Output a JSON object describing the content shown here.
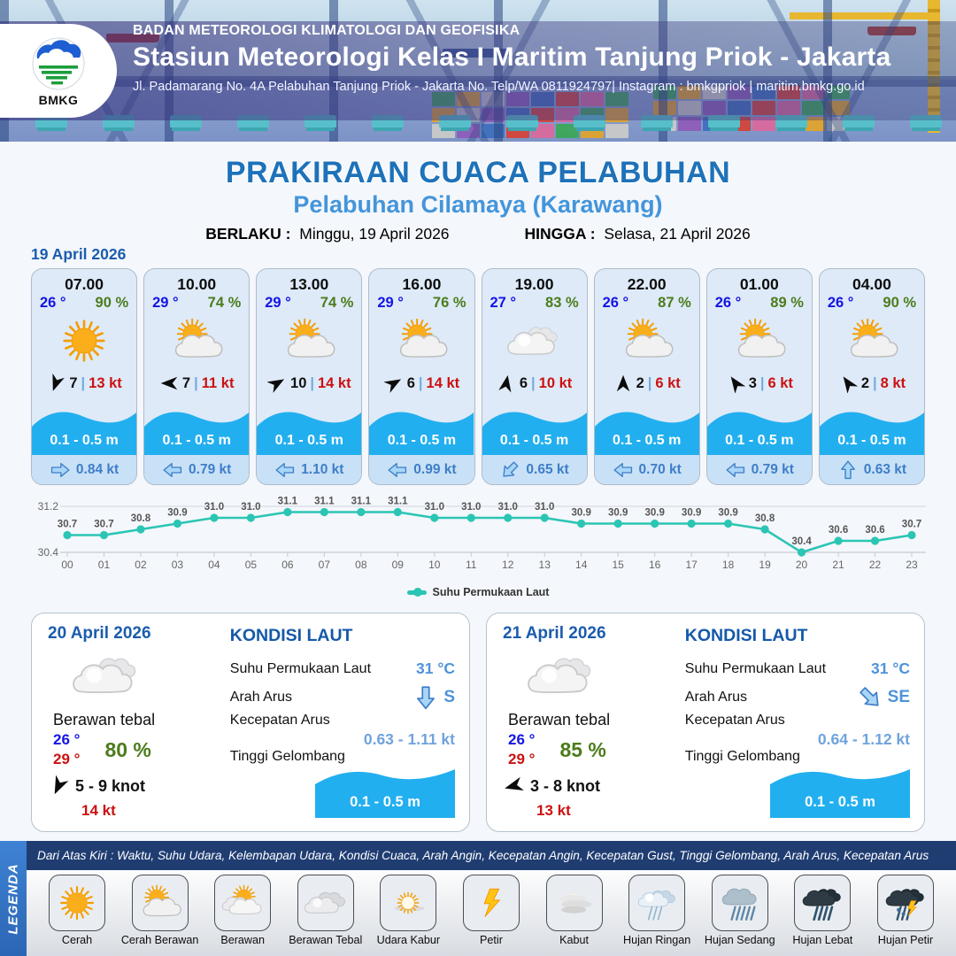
{
  "header": {
    "logo_label": "BMKG",
    "agency": "BADAN METEOROLOGI KLIMATOLOGI DAN GEOFISIKA",
    "station": "Stasiun Meteorologi Kelas I Maritim Tanjung Priok - Jakarta",
    "address": "Jl. Padamarang No. 4A Pelabuhan Tanjung Priok - Jakarta No. Telp/WA 0811924797| Instagram : bmkgpriok | maritim.bmkg.go.id"
  },
  "title": {
    "main": "PRAKIRAAN CUACA PELABUHAN",
    "sub": "Pelabuhan Cilamaya (Karawang)"
  },
  "validity": {
    "berlaku_label": "BERLAKU :",
    "berlaku_value": "Minggu, 19 April 2026",
    "hingga_label": "HINGGA :",
    "hingga_value": "Selasa, 21 April 2026"
  },
  "forecast_date": "19 April 2026",
  "hourly_cards": [
    {
      "time": "07.00",
      "temp": "26 °",
      "humidity": "90 %",
      "weather_icon": "sun",
      "wind_dir_deg": 200,
      "wind_speed": "7",
      "wind_gust": "13 kt",
      "wave_height": "0.1 - 0.5 m",
      "current_dir_deg": 0,
      "current_speed": "0.84 kt"
    },
    {
      "time": "10.00",
      "temp": "29 °",
      "humidity": "74 %",
      "weather_icon": "sun-cloud",
      "wind_dir_deg": 270,
      "wind_speed": "7",
      "wind_gust": "11 kt",
      "wave_height": "0.1 - 0.5 m",
      "current_dir_deg": 180,
      "current_speed": "0.79 kt"
    },
    {
      "time": "13.00",
      "temp": "29 °",
      "humidity": "74 %",
      "weather_icon": "sun-cloud",
      "wind_dir_deg": 60,
      "wind_speed": "10",
      "wind_gust": "14 kt",
      "wave_height": "0.1 - 0.5 m",
      "current_dir_deg": 180,
      "current_speed": "1.10 kt"
    },
    {
      "time": "16.00",
      "temp": "29 °",
      "humidity": "76 %",
      "weather_icon": "sun-cloud",
      "wind_dir_deg": 60,
      "wind_speed": "6",
      "wind_gust": "14 kt",
      "wave_height": "0.1 - 0.5 m",
      "current_dir_deg": 180,
      "current_speed": "0.99 kt"
    },
    {
      "time": "19.00",
      "temp": "27 °",
      "humidity": "83 %",
      "weather_icon": "cloud",
      "wind_dir_deg": 10,
      "wind_speed": "6",
      "wind_gust": "10 kt",
      "wave_height": "0.1 - 0.5 m",
      "current_dir_deg": 135,
      "current_speed": "0.65 kt"
    },
    {
      "time": "22.00",
      "temp": "26 °",
      "humidity": "87 %",
      "weather_icon": "sun-cloud",
      "wind_dir_deg": 0,
      "wind_speed": "2",
      "wind_gust": "6 kt",
      "wave_height": "0.1 - 0.5 m",
      "current_dir_deg": 180,
      "current_speed": "0.70 kt"
    },
    {
      "time": "01.00",
      "temp": "26 °",
      "humidity": "89 %",
      "weather_icon": "sun-cloud",
      "wind_dir_deg": 325,
      "wind_speed": "3",
      "wind_gust": "6 kt",
      "wave_height": "0.1 - 0.5 m",
      "current_dir_deg": 180,
      "current_speed": "0.79 kt"
    },
    {
      "time": "04.00",
      "temp": "26 °",
      "humidity": "90 %",
      "weather_icon": "sun-cloud",
      "wind_dir_deg": 325,
      "wind_speed": "2",
      "wind_gust": "8 kt",
      "wave_height": "0.1 - 0.5 m",
      "current_dir_deg": 270,
      "current_speed": "0.63 kt"
    }
  ],
  "chart_data": {
    "type": "line",
    "series_label": "Suhu Permukaan Laut",
    "categories": [
      "00",
      "01",
      "02",
      "03",
      "04",
      "05",
      "06",
      "07",
      "08",
      "09",
      "10",
      "11",
      "12",
      "13",
      "14",
      "15",
      "16",
      "17",
      "18",
      "19",
      "20",
      "21",
      "22",
      "23"
    ],
    "values": [
      30.7,
      30.7,
      30.8,
      30.9,
      31.0,
      31.0,
      31.1,
      31.1,
      31.1,
      31.1,
      31.0,
      31.0,
      31.0,
      31.0,
      30.9,
      30.9,
      30.9,
      30.9,
      30.9,
      30.8,
      30.4,
      30.6,
      30.6,
      30.7
    ],
    "ylim": [
      30.4,
      31.2
    ],
    "ytick_labels": [
      "31.2",
      "30.4"
    ],
    "grid": "horizontal-only",
    "legend_position": "bottom-center",
    "color": "#2bc5b4"
  },
  "daily_cards": [
    {
      "date": "20 April 2026",
      "weather_icon": "cloud",
      "condition": "Berawan tebal",
      "temp_min": "26 °",
      "temp_max": "29 °",
      "humidity": "80 %",
      "wind_dir_deg": 205,
      "wind_range": "5  - 9 knot",
      "gust": "14 kt",
      "sea": {
        "heading": "KONDISI LAUT",
        "sst_label": "Suhu Permukaan Laut",
        "sst": "31 °C",
        "dir_label": "Arah Arus",
        "dir": "S",
        "dir_deg": 90,
        "speed_label": "Kecepatan Arus",
        "speed": "0.63  - 1.11 kt",
        "wave_label": "Tinggi Gelombang",
        "wave": "0.1 - 0.5 m"
      }
    },
    {
      "date": "21 April 2026",
      "weather_icon": "cloud",
      "condition": "Berawan tebal",
      "temp_min": "26 °",
      "temp_max": "29 °",
      "humidity": "85 %",
      "wind_dir_deg": 255,
      "wind_range": "3  - 8 knot",
      "gust": "13 kt",
      "sea": {
        "heading": "KONDISI LAUT",
        "sst_label": "Suhu Permukaan Laut",
        "sst": "31 °C",
        "dir_label": "Arah Arus",
        "dir": "SE",
        "dir_deg": 45,
        "speed_label": "Kecepatan Arus",
        "speed": "0.64 - 1.12 kt",
        "wave_label": "Tinggi Gelombang",
        "wave": "0.1 - 0.5 m"
      }
    }
  ],
  "legend": {
    "tab": "LEGENDA",
    "note": "Dari Atas Kiri : Waktu, Suhu Udara, Kelembapan Udara, Kondisi Cuaca, Arah Angin, Kecepatan Angin, Kecepatan Gust, Tinggi Gelombang, Arah Arus, Kecepatan Arus",
    "items": [
      {
        "icon": "sun",
        "label": "Cerah"
      },
      {
        "icon": "sun-cloud",
        "label": "Cerah Berawan"
      },
      {
        "icon": "cloud-sun",
        "label": "Berawan"
      },
      {
        "icon": "clouds",
        "label": "Berawan Tebal"
      },
      {
        "icon": "haze",
        "label": "Udara Kabur"
      },
      {
        "icon": "lightning",
        "label": "Petir"
      },
      {
        "icon": "fog",
        "label": "Kabut"
      },
      {
        "icon": "rain-light",
        "label": "Hujan Ringan"
      },
      {
        "icon": "rain-medium",
        "label": "Hujan Sedang"
      },
      {
        "icon": "rain-heavy",
        "label": "Hujan Lebat"
      },
      {
        "icon": "storm",
        "label": "Hujan Petir"
      }
    ]
  },
  "colors": {
    "accent_blue": "#1e72b9",
    "light_blue": "#4495da",
    "wave_blue": "#22afef",
    "temp_blue": "#1414e6",
    "humidity_green": "#4c7c1b",
    "gust_red": "#cc1111",
    "chart_teal": "#2bc5b4",
    "legend_navy": "#203d72",
    "legend_tab_blue": "#2e70c2"
  }
}
